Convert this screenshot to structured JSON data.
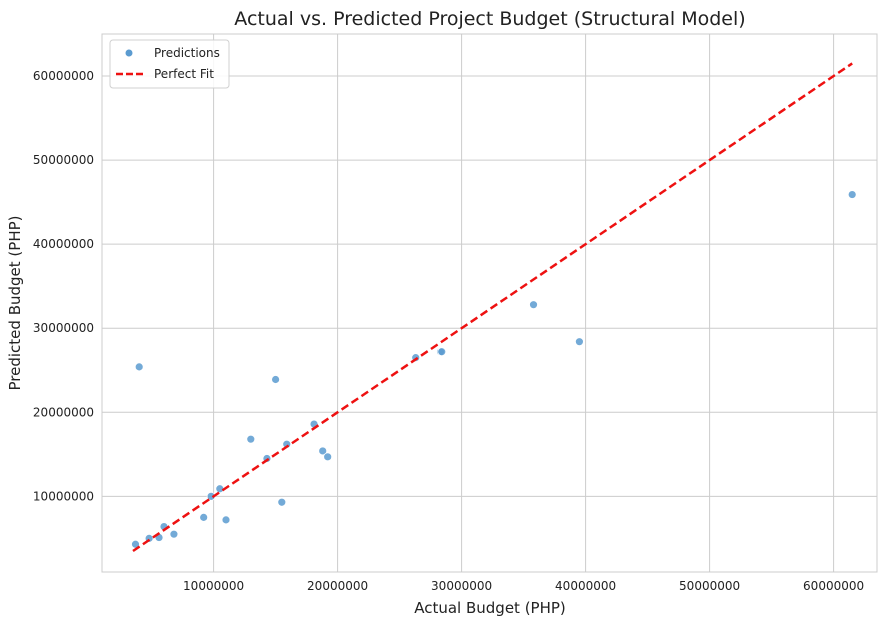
{
  "chart_data": {
    "type": "scatter",
    "title": "Actual vs. Predicted Project Budget (Structural Model)",
    "xlabel": "Actual Budget (PHP)",
    "ylabel": "Predicted Budget (PHP)",
    "xlim": [
      1000000,
      63500000
    ],
    "ylim": [
      1000000,
      65000000
    ],
    "x_ticks": [
      10000000,
      20000000,
      30000000,
      40000000,
      50000000,
      60000000
    ],
    "x_tick_labels": [
      "10000000",
      "20000000",
      "30000000",
      "40000000",
      "50000000",
      "60000000"
    ],
    "y_ticks": [
      10000000,
      20000000,
      30000000,
      40000000,
      50000000,
      60000000
    ],
    "y_tick_labels": [
      "10000000",
      "20000000",
      "30000000",
      "40000000",
      "50000000",
      "60000000"
    ],
    "grid": true,
    "legend_position": "top-left",
    "series": [
      {
        "name": "Predictions",
        "kind": "scatter",
        "color": "#5b9bd0",
        "x": [
          3700000,
          4000000,
          4800000,
          5600000,
          6000000,
          6800000,
          9200000,
          9800000,
          10500000,
          11000000,
          13000000,
          14300000,
          15000000,
          15500000,
          15900000,
          18100000,
          18800000,
          19200000,
          26300000,
          28300000,
          28400000,
          35800000,
          39500000,
          61500000
        ],
        "y": [
          4300000,
          25400000,
          5000000,
          5100000,
          6400000,
          5500000,
          7500000,
          10000000,
          10900000,
          7200000,
          16800000,
          14500000,
          23900000,
          9300000,
          16200000,
          18600000,
          15400000,
          14700000,
          26500000,
          27200000,
          27200000,
          32800000,
          28400000,
          45900000
        ]
      },
      {
        "name": "Perfect Fit",
        "kind": "line",
        "style": "dashed",
        "color": "#ee1111",
        "x": [
          3500000,
          61500000
        ],
        "y": [
          3500000,
          61500000
        ]
      }
    ]
  }
}
